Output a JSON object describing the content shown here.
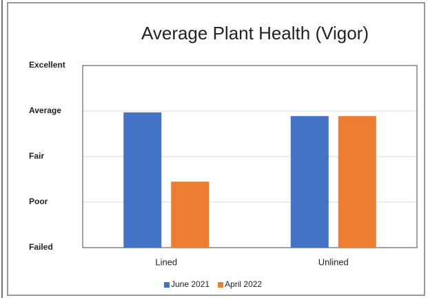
{
  "chart_data": {
    "type": "bar",
    "title": "Average Plant Health (Vigor)",
    "categories": [
      "Lined",
      "Unlined"
    ],
    "series": [
      {
        "name": "June 2021",
        "color": "#4472c4",
        "values": [
          2.97,
          2.89
        ]
      },
      {
        "name": "April 2022",
        "color": "#ed7d31",
        "values": [
          1.45,
          2.89
        ]
      }
    ],
    "ylim": [
      0,
      4
    ],
    "yticks": [
      {
        "value": 0,
        "label": "Failed"
      },
      {
        "value": 1,
        "label": "Poor"
      },
      {
        "value": 2,
        "label": "Fair"
      },
      {
        "value": 3,
        "label": "Average"
      },
      {
        "value": 4,
        "label": "Excellent"
      }
    ],
    "grid": true,
    "legend": "bottom"
  }
}
